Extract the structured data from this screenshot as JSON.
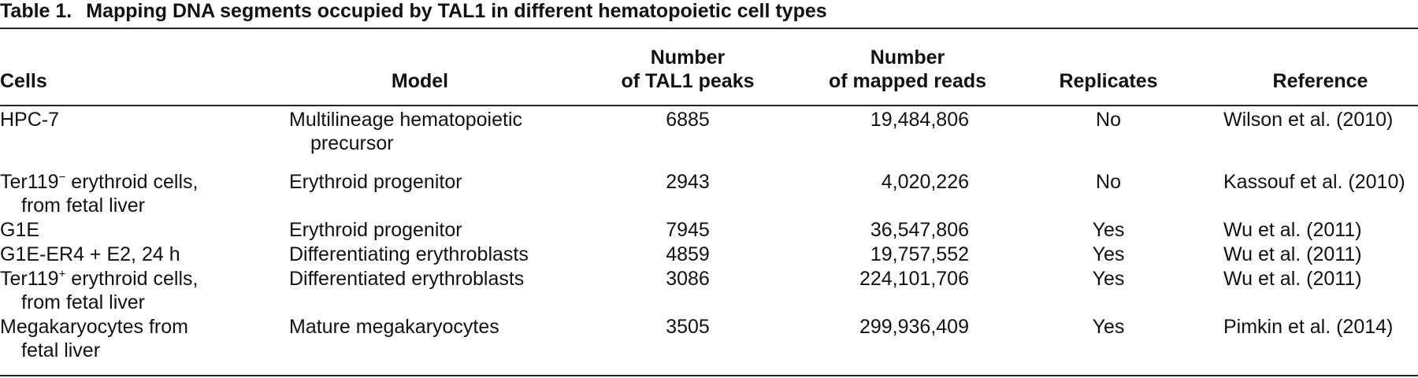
{
  "table": {
    "caption": {
      "number": "Table 1.",
      "title": "Mapping DNA segments occupied by TAL1 in different hematopoietic cell types"
    },
    "headers": {
      "cells": "Cells",
      "model": "Model",
      "peaks_line1": "Number",
      "peaks_line2": "of TAL1 peaks",
      "reads_line1": "Number",
      "reads_line2": "of mapped reads",
      "replicates": "Replicates",
      "reference": "Reference"
    },
    "rows": [
      {
        "cell_line1": "HPC-7",
        "model_line1": "Multilineage hematopoietic",
        "model_line2": "precursor",
        "peaks": "6885",
        "reads": "19,484,806",
        "replicates": "No",
        "reference": "Wilson et al. (2010)"
      },
      {
        "cell_line1": "Ter119",
        "cell_sup": "−",
        "cell_line1_rest": " erythroid cells,",
        "cell_line2": "from fetal liver",
        "model_line1": "Erythroid progenitor",
        "peaks": "2943",
        "reads": "4,020,226",
        "replicates": "No",
        "reference": "Kassouf et al. (2010)"
      },
      {
        "cell_line1": "G1E",
        "model_line1": "Erythroid progenitor",
        "peaks": "7945",
        "reads": "36,547,806",
        "replicates": "Yes",
        "reference": "Wu et al. (2011)"
      },
      {
        "cell_line1": "G1E-ER4 + E2, 24 h",
        "model_line1": "Differentiating erythroblasts",
        "peaks": "4859",
        "reads": "19,757,552",
        "replicates": "Yes",
        "reference": "Wu et al. (2011)"
      },
      {
        "cell_line1": "Ter119",
        "cell_sup": "+",
        "cell_line1_rest": " erythroid cells,",
        "cell_line2": "from fetal liver",
        "model_line1": "Differentiated erythroblasts",
        "peaks": "3086",
        "reads": "224,101,706",
        "replicates": "Yes",
        "reference": "Wu et al. (2011)"
      },
      {
        "cell_line1": "Megakaryocytes from",
        "cell_line2": "fetal liver",
        "model_line1": "Mature megakaryocytes",
        "peaks": "3505",
        "reads": "299,936,409",
        "replicates": "Yes",
        "reference": "Pimkin et al. (2014)"
      }
    ]
  }
}
